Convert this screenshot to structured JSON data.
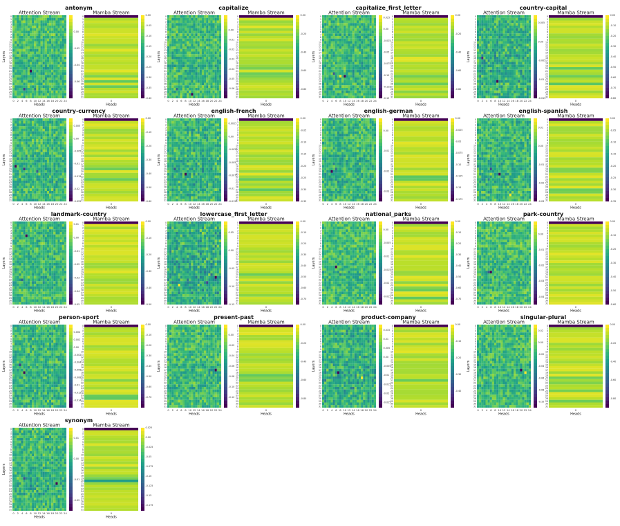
{
  "figure": {
    "panel_titles": {
      "attention": "Attention Stream",
      "mamba": "Mamba Stream"
    },
    "axis_labels": {
      "x": "Heads",
      "y": "Layers"
    },
    "mamba_x_tick": "0"
  },
  "chart_data": [
    {
      "type": "heatmap",
      "title": "antonym",
      "layers": 32,
      "heads": 25,
      "attention": {
        "cbar_range": [
          -0.08,
          0.02
        ],
        "cbar_ticks": [
          0.0,
          -0.02,
          -0.04,
          -0.06
        ],
        "bg": 0.2,
        "spots": [
          [
            21,
            8,
            -0.08
          ],
          [
            28,
            5,
            -0.06
          ],
          [
            28,
            10,
            -0.04
          ]
        ]
      },
      "mamba": {
        "cbar_range": [
          -0.4,
          0.0
        ],
        "cbar_ticks": [
          0.0,
          -0.05,
          -0.1,
          -0.15,
          -0.2,
          -0.25,
          -0.3,
          -0.35,
          -0.4
        ]
      }
    },
    {
      "type": "heatmap",
      "title": "capitalize",
      "layers": 32,
      "heads": 25,
      "attention": {
        "cbar_range": [
          -0.07,
          0.015
        ],
        "cbar_ticks": [
          0.0,
          -0.01,
          -0.02,
          -0.03,
          -0.04,
          -0.05,
          -0.06
        ],
        "bg": 0.2,
        "spots": [
          [
            30,
            11,
            -0.07
          ],
          [
            28,
            4,
            -0.04
          ]
        ]
      },
      "mamba": {
        "cbar_range": [
          -0.9,
          0.0
        ],
        "cbar_ticks": [
          0.0,
          -0.2,
          -0.4,
          -0.6,
          -0.8
        ]
      }
    },
    {
      "type": "heatmap",
      "title": "capitalize_first_letter",
      "layers": 32,
      "heads": 25,
      "attention": {
        "cbar_range": [
          -0.15,
          0.03
        ],
        "cbar_ticks": [
          0.025,
          0.0,
          -0.025,
          -0.05,
          -0.075,
          -0.1,
          -0.125,
          -0.15
        ],
        "bg": 0.25,
        "spots": [
          [
            23,
            10,
            -0.15
          ],
          [
            23,
            8,
            0.03
          ],
          [
            22,
            5,
            -0.1
          ]
        ]
      },
      "mamba": {
        "cbar_range": [
          -0.9,
          0.0
        ],
        "cbar_ticks": [
          0.0,
          -0.2,
          -0.4,
          -0.6,
          -0.8
        ]
      }
    },
    {
      "type": "heatmap",
      "title": "country-capital",
      "layers": 32,
      "heads": 25,
      "attention": {
        "cbar_range": [
          -0.015,
          0.007
        ],
        "cbar_ticks": [
          0.005,
          0.0,
          -0.005,
          -0.01,
          -0.015
        ],
        "bg": 0.45,
        "spots": [
          [
            25,
            9,
            -0.015
          ],
          [
            16,
            2,
            -0.012
          ]
        ]
      },
      "mamba": {
        "cbar_range": [
          -0.8,
          0.0
        ],
        "cbar_ticks": [
          0.0,
          -0.1,
          -0.2,
          -0.3,
          -0.4,
          -0.5,
          -0.6,
          -0.7,
          -0.8
        ]
      }
    },
    {
      "type": "heatmap",
      "title": "country-currency",
      "layers": 32,
      "heads": 25,
      "attention": {
        "cbar_range": [
          -0.025,
          0.008
        ],
        "cbar_ticks": [
          0.005,
          0.0,
          -0.005,
          -0.01,
          -0.015,
          -0.02,
          -0.025
        ],
        "bg": 0.3,
        "spots": [
          [
            18,
            1,
            -0.025
          ],
          [
            19,
            5,
            -0.02
          ],
          [
            20,
            11,
            -0.015
          ]
        ]
      },
      "mamba": {
        "cbar_range": [
          -0.6,
          0.0
        ],
        "cbar_ticks": [
          0.0,
          -0.1,
          -0.2,
          -0.3,
          -0.4,
          -0.5,
          -0.6
        ]
      }
    },
    {
      "type": "heatmap",
      "title": "english-french",
      "layers": 32,
      "heads": 25,
      "attention": {
        "cbar_range": [
          -0.0125,
          0.0035
        ],
        "cbar_ticks": [
          0.0025,
          0.0,
          -0.0025,
          -0.005,
          -0.0075,
          -0.01,
          -0.0125
        ],
        "bg": 0.35,
        "spots": [
          [
            21,
            8,
            -0.0125
          ],
          [
            19,
            3,
            -0.008
          ]
        ]
      },
      "mamba": {
        "cbar_range": [
          -0.35,
          0.0
        ],
        "cbar_ticks": [
          0.0,
          -0.05,
          -0.1,
          -0.15,
          -0.2,
          -0.25,
          -0.3,
          -0.35
        ]
      }
    },
    {
      "type": "heatmap",
      "title": "english-german",
      "layers": 32,
      "heads": 25,
      "attention": {
        "cbar_range": [
          -0.035,
          0.006
        ],
        "cbar_ticks": [
          0.0,
          -0.01,
          -0.02,
          -0.03
        ],
        "bg": 0.3,
        "spots": [
          [
            20,
            4,
            -0.035
          ],
          [
            19,
            6,
            -0.02
          ]
        ]
      },
      "mamba": {
        "cbar_range": [
          -0.18,
          0.0
        ],
        "cbar_ticks": [
          0.0,
          -0.025,
          -0.05,
          -0.075,
          -0.1,
          -0.125,
          -0.15,
          -0.175
        ]
      }
    },
    {
      "type": "heatmap",
      "title": "english-spanish",
      "layers": 32,
      "heads": 25,
      "attention": {
        "cbar_range": [
          -0.03,
          0.015
        ],
        "cbar_ticks": [
          0.01,
          0.0,
          -0.01,
          -0.02,
          -0.03
        ],
        "bg": 0.3,
        "spots": [
          [
            21,
            10,
            -0.03
          ],
          [
            19,
            6,
            -0.02
          ],
          [
            29,
            15,
            0.015
          ]
        ]
      },
      "mamba": {
        "cbar_range": [
          -0.35,
          0.0
        ],
        "cbar_ticks": [
          0.0,
          -0.05,
          -0.1,
          -0.15,
          -0.2,
          -0.25,
          -0.3,
          -0.35
        ]
      }
    },
    {
      "type": "heatmap",
      "title": "landmark-country",
      "layers": 32,
      "heads": 25,
      "attention": {
        "cbar_range": [
          -0.05,
          0.012
        ],
        "cbar_ticks": [
          0.01,
          0.0,
          -0.01,
          -0.02,
          -0.03,
          -0.04,
          -0.05
        ],
        "bg": 0.25,
        "spots": [
          [
            5,
            6,
            -0.05
          ],
          [
            22,
            4,
            -0.03
          ]
        ]
      },
      "mamba": {
        "cbar_range": [
          -0.5,
          0.0
        ],
        "cbar_ticks": [
          0.0,
          -0.1,
          -0.2,
          -0.3,
          -0.4,
          -0.5
        ]
      }
    },
    {
      "type": "heatmap",
      "title": "lowercase_first_letter",
      "layers": 32,
      "heads": 25,
      "attention": {
        "cbar_range": [
          -0.15,
          0.08
        ],
        "cbar_ticks": [
          0.05,
          0.0,
          -0.05,
          -0.1,
          -0.15
        ],
        "bg": 0.5,
        "spots": [
          [
            21,
            22,
            -0.15
          ],
          [
            24,
            5,
            0.08
          ],
          [
            23,
            18,
            -0.1
          ]
        ]
      },
      "mamba": {
        "cbar_range": [
          -0.75,
          0.0
        ],
        "cbar_ticks": [
          0.0,
          -0.1,
          -0.2,
          -0.3,
          -0.4,
          -0.5,
          -0.6,
          -0.7
        ]
      }
    },
    {
      "type": "heatmap",
      "title": "national_parks",
      "layers": 32,
      "heads": 25,
      "attention": {
        "cbar_range": [
          -0.028,
          0.003
        ],
        "cbar_ticks": [
          0.0,
          -0.005,
          -0.01,
          -0.015,
          -0.02,
          -0.025
        ],
        "bg": 0.15,
        "spots": [
          [
            17,
            6,
            -0.028
          ],
          [
            20,
            8,
            -0.015
          ]
        ]
      },
      "mamba": {
        "cbar_range": [
          -0.75,
          0.0
        ],
        "cbar_ticks": [
          0.0,
          -0.1,
          -0.2,
          -0.3,
          -0.4,
          -0.5,
          -0.6,
          -0.7
        ]
      }
    },
    {
      "type": "heatmap",
      "title": "park-country",
      "layers": 32,
      "heads": 25,
      "attention": {
        "cbar_range": [
          -0.045,
          0.008
        ],
        "cbar_ticks": [
          0.0,
          -0.01,
          -0.02,
          -0.03,
          -0.04
        ],
        "bg": 0.15,
        "spots": [
          [
            19,
            6,
            -0.045
          ],
          [
            19,
            5,
            -0.03
          ]
        ]
      },
      "mamba": {
        "cbar_range": [
          -0.6,
          0.0
        ],
        "cbar_ticks": [
          0.0,
          -0.1,
          -0.2,
          -0.3,
          -0.4,
          -0.5,
          -0.6
        ]
      }
    },
    {
      "type": "heatmap",
      "title": "person-sport",
      "layers": 32,
      "heads": 25,
      "attention": {
        "cbar_range": [
          -0.016,
          0.006
        ],
        "cbar_ticks": [
          0.004,
          0.002,
          0.0,
          -0.002,
          -0.004,
          -0.006,
          -0.008,
          -0.01,
          -0.012,
          -0.014
        ],
        "bg": 0.3,
        "spots": [
          [
            18,
            5,
            -0.016
          ],
          [
            15,
            3,
            -0.012
          ]
        ]
      },
      "mamba": {
        "cbar_range": [
          -0.8,
          0.0
        ],
        "cbar_ticks": [
          0.0,
          -0.1,
          -0.2,
          -0.3,
          -0.4,
          -0.5,
          -0.6,
          -0.7
        ]
      }
    },
    {
      "type": "heatmap",
      "title": "present-past",
      "layers": 32,
      "heads": 25,
      "attention": {
        "cbar_range": [
          -0.14,
          0.02
        ],
        "cbar_ticks": [
          0.0,
          -0.02,
          -0.04,
          -0.06,
          -0.08,
          -0.1,
          -0.12
        ],
        "bg": 0.2,
        "spots": [
          [
            17,
            22,
            -0.14
          ],
          [
            17,
            21,
            -0.06
          ]
        ]
      },
      "mamba": {
        "cbar_range": [
          -0.9,
          0.0
        ],
        "cbar_ticks": [
          0.0,
          -0.2,
          -0.4,
          -0.6,
          -0.8
        ]
      }
    },
    {
      "type": "heatmap",
      "title": "product-company",
      "layers": 32,
      "heads": 25,
      "attention": {
        "cbar_range": [
          -0.028,
          0.018
        ],
        "cbar_ticks": [
          0.015,
          0.01,
          0.005,
          0.0,
          -0.005,
          -0.01,
          -0.015,
          -0.02,
          -0.025
        ],
        "bg": 0.45,
        "spots": [
          [
            18,
            7,
            -0.028
          ],
          [
            20,
            18,
            0.018
          ]
        ]
      },
      "mamba": {
        "cbar_range": [
          -0.5,
          0.0
        ],
        "cbar_ticks": [
          0.0,
          -0.1,
          -0.2,
          -0.3,
          -0.4
        ]
      }
    },
    {
      "type": "heatmap",
      "title": "singular-plural",
      "layers": 32,
      "heads": 25,
      "attention": {
        "cbar_range": [
          -0.11,
          0.03
        ],
        "cbar_ticks": [
          0.02,
          0.0,
          -0.02,
          -0.04,
          -0.06,
          -0.08,
          -0.1
        ],
        "bg": 0.2,
        "spots": [
          [
            17,
            20,
            -0.11
          ],
          [
            18,
            22,
            0.03
          ]
        ]
      },
      "mamba": {
        "cbar_range": [
          -0.9,
          0.0
        ],
        "cbar_ticks": [
          0.0,
          -0.2,
          -0.4,
          -0.6,
          -0.8
        ]
      }
    },
    {
      "type": "heatmap",
      "title": "synonym",
      "layers": 32,
      "heads": 25,
      "attention": {
        "cbar_range": [
          -0.025,
          0.015
        ],
        "cbar_ticks": [
          0.01,
          0.0,
          -0.01,
          -0.02
        ],
        "bg": 0.3,
        "spots": [
          [
            21,
            20,
            -0.025
          ],
          [
            19,
            5,
            -0.015
          ]
        ]
      },
      "mamba": {
        "cbar_range": [
          -0.19,
          0.025
        ],
        "cbar_ticks": [
          0.025,
          0.0,
          -0.025,
          -0.05,
          -0.075,
          -0.1,
          -0.125,
          -0.15,
          -0.175
        ]
      }
    }
  ]
}
